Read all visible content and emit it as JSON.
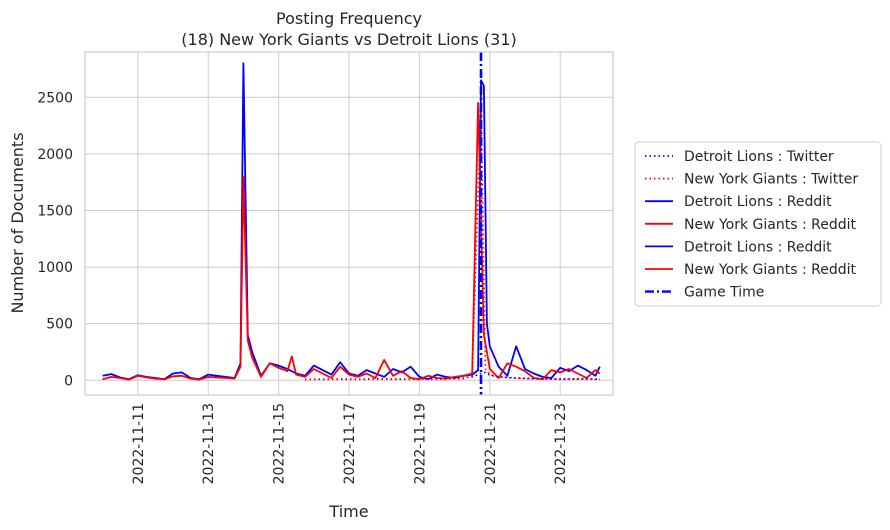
{
  "chart_data": {
    "type": "line",
    "title": "Posting Frequency",
    "subtitle": "(18) New York Giants vs Detroit Lions (31)",
    "xlabel": "Time",
    "ylabel": "Number of Documents",
    "xlim": [
      "2022-11-09 12:00",
      "2022-11-24 12:00"
    ],
    "ylim": [
      -130,
      2900
    ],
    "x_ticks": [
      "2022-11-11",
      "2022-11-13",
      "2022-11-15",
      "2022-11-17",
      "2022-11-19",
      "2022-11-21",
      "2022-11-23"
    ],
    "y_ticks": [
      0,
      500,
      1000,
      1500,
      2000,
      2500
    ],
    "grid": true,
    "legend_position": "outside-right",
    "game_time": "2022-11-20 18:00",
    "series": [
      {
        "name": "Detroit Lions : Twitter",
        "color": "#0000ff",
        "style": "dotted",
        "x": [
          "2022-11-15 18:00",
          "2022-11-16 06:00",
          "2022-11-16 18:00",
          "2022-11-17 06:00",
          "2022-11-17 18:00",
          "2022-11-18 06:00",
          "2022-11-18 18:00",
          "2022-11-19 06:00",
          "2022-11-19 18:00",
          "2022-11-20 06:00",
          "2022-11-20 12:00",
          "2022-11-20 18:00",
          "2022-11-20 21:00",
          "2022-11-21 00:00",
          "2022-11-21 06:00",
          "2022-11-21 18:00",
          "2022-11-22 06:00",
          "2022-11-22 18:00",
          "2022-11-23 06:00",
          "2022-11-23 18:00",
          "2022-11-24 03:00"
        ],
        "y": [
          8,
          10,
          12,
          10,
          14,
          12,
          10,
          12,
          16,
          20,
          30,
          60,
          70,
          45,
          30,
          20,
          15,
          12,
          12,
          14,
          10
        ]
      },
      {
        "name": "New York Giants : Twitter",
        "color": "#ff0000",
        "style": "dotted",
        "x": [
          "2022-11-15 18:00",
          "2022-11-16 06:00",
          "2022-11-16 18:00",
          "2022-11-17 06:00",
          "2022-11-17 18:00",
          "2022-11-18 06:00",
          "2022-11-18 18:00",
          "2022-11-19 06:00",
          "2022-11-19 18:00",
          "2022-11-20 06:00",
          "2022-11-20 12:00",
          "2022-11-20 18:00",
          "2022-11-20 21:00",
          "2022-11-21 00:00",
          "2022-11-21 06:00",
          "2022-11-21 18:00",
          "2022-11-22 06:00",
          "2022-11-22 18:00",
          "2022-11-23 06:00",
          "2022-11-23 18:00",
          "2022-11-24 03:00"
        ],
        "y": [
          5,
          6,
          8,
          7,
          9,
          8,
          7,
          9,
          10,
          14,
          40,
          2450,
          100,
          50,
          30,
          18,
          12,
          10,
          9,
          10,
          8
        ]
      },
      {
        "name": "Detroit Lions : Reddit",
        "color": "#0000ff",
        "style": "solid",
        "x": [
          "2022-11-10 00:00",
          "2022-11-10 06:00",
          "2022-11-10 12:00",
          "2022-11-10 18:00",
          "2022-11-11 00:00",
          "2022-11-11 06:00",
          "2022-11-11 12:00",
          "2022-11-11 18:00",
          "2022-11-12 00:00",
          "2022-11-12 06:00",
          "2022-11-12 12:00",
          "2022-11-12 18:00",
          "2022-11-13 00:00",
          "2022-11-13 06:00",
          "2022-11-13 12:00",
          "2022-11-13 18:00",
          "2022-11-13 22:00",
          "2022-11-14 00:00",
          "2022-11-14 03:00",
          "2022-11-14 06:00",
          "2022-11-14 12:00",
          "2022-11-14 18:00",
          "2022-11-15 00:00",
          "2022-11-15 06:00",
          "2022-11-15 12:00",
          "2022-11-15 18:00",
          "2022-11-16 00:00",
          "2022-11-16 06:00",
          "2022-11-16 12:00",
          "2022-11-16 18:00",
          "2022-11-17 00:00",
          "2022-11-17 06:00",
          "2022-11-17 12:00",
          "2022-11-17 18:00",
          "2022-11-18 00:00",
          "2022-11-18 06:00",
          "2022-11-18 12:00",
          "2022-11-18 18:00",
          "2022-11-19 00:00",
          "2022-11-19 06:00",
          "2022-11-19 12:00",
          "2022-11-19 18:00",
          "2022-11-20 00:00",
          "2022-11-20 06:00",
          "2022-11-20 12:00",
          "2022-11-20 16:00",
          "2022-11-20 18:00",
          "2022-11-20 20:00",
          "2022-11-20 22:00",
          "2022-11-21 00:00",
          "2022-11-21 06:00",
          "2022-11-21 12:00",
          "2022-11-21 18:00",
          "2022-11-22 00:00",
          "2022-11-22 06:00",
          "2022-11-22 12:00",
          "2022-11-22 18:00",
          "2022-11-23 00:00",
          "2022-11-23 06:00",
          "2022-11-23 12:00",
          "2022-11-23 18:00",
          "2022-11-24 00:00",
          "2022-11-24 03:00"
        ],
        "y": [
          40,
          55,
          25,
          10,
          45,
          30,
          20,
          10,
          60,
          70,
          20,
          10,
          50,
          40,
          30,
          20,
          150,
          2800,
          400,
          250,
          40,
          150,
          130,
          100,
          60,
          40,
          130,
          90,
          50,
          160,
          60,
          40,
          90,
          60,
          30,
          100,
          70,
          120,
          30,
          10,
          50,
          30,
          20,
          40,
          50,
          90,
          2650,
          2600,
          500,
          300,
          120,
          40,
          300,
          100,
          60,
          30,
          20,
          110,
          80,
          130,
          90,
          40,
          120
        ]
      },
      {
        "name": "New York Giants : Reddit",
        "color": "#ff0000",
        "style": "solid",
        "x": [
          "2022-11-10 00:00",
          "2022-11-10 06:00",
          "2022-11-10 12:00",
          "2022-11-10 18:00",
          "2022-11-11 00:00",
          "2022-11-11 06:00",
          "2022-11-11 12:00",
          "2022-11-11 18:00",
          "2022-11-12 00:00",
          "2022-11-12 06:00",
          "2022-11-12 12:00",
          "2022-11-12 18:00",
          "2022-11-13 00:00",
          "2022-11-13 06:00",
          "2022-11-13 12:00",
          "2022-11-13 18:00",
          "2022-11-13 22:00",
          "2022-11-14 00:00",
          "2022-11-14 03:00",
          "2022-11-14 06:00",
          "2022-11-14 12:00",
          "2022-11-14 18:00",
          "2022-11-15 00:00",
          "2022-11-15 06:00",
          "2022-11-15 09:00",
          "2022-11-15 12:00",
          "2022-11-15 18:00",
          "2022-11-16 00:00",
          "2022-11-16 06:00",
          "2022-11-16 12:00",
          "2022-11-16 18:00",
          "2022-11-17 00:00",
          "2022-11-17 06:00",
          "2022-11-17 12:00",
          "2022-11-17 18:00",
          "2022-11-18 00:00",
          "2022-11-18 06:00",
          "2022-11-18 12:00",
          "2022-11-18 18:00",
          "2022-11-19 00:00",
          "2022-11-19 06:00",
          "2022-11-19 12:00",
          "2022-11-19 18:00",
          "2022-11-20 00:00",
          "2022-11-20 06:00",
          "2022-11-20 12:00",
          "2022-11-20 16:00",
          "2022-11-20 20:00",
          "2022-11-20 22:00",
          "2022-11-21 00:00",
          "2022-11-21 06:00",
          "2022-11-21 12:00",
          "2022-11-21 18:00",
          "2022-11-22 00:00",
          "2022-11-22 06:00",
          "2022-11-22 12:00",
          "2022-11-22 18:00",
          "2022-11-23 00:00",
          "2022-11-23 06:00",
          "2022-11-23 12:00",
          "2022-11-23 18:00",
          "2022-11-24 00:00",
          "2022-11-24 03:00"
        ],
        "y": [
          10,
          30,
          20,
          5,
          40,
          25,
          15,
          8,
          35,
          40,
          15,
          5,
          30,
          25,
          20,
          15,
          120,
          1800,
          350,
          200,
          30,
          150,
          110,
          80,
          210,
          50,
          30,
          100,
          60,
          20,
          120,
          50,
          30,
          60,
          20,
          180,
          40,
          80,
          20,
          10,
          40,
          20,
          15,
          30,
          40,
          60,
          2450,
          400,
          250,
          100,
          20,
          150,
          120,
          80,
          20,
          10,
          90,
          70,
          100,
          60,
          20,
          90,
          60
        ]
      },
      {
        "name": "Detroit Lions : Reddit",
        "color": "#0000ff",
        "style": "solid",
        "x": [],
        "y": []
      },
      {
        "name": "New York Giants : Reddit",
        "color": "#ff0000",
        "style": "solid",
        "x": [],
        "y": []
      }
    ],
    "vlines": [
      {
        "name": "Game Time",
        "x": "2022-11-20 18:00",
        "color": "#0000ff",
        "style": "dashdot"
      }
    ]
  }
}
